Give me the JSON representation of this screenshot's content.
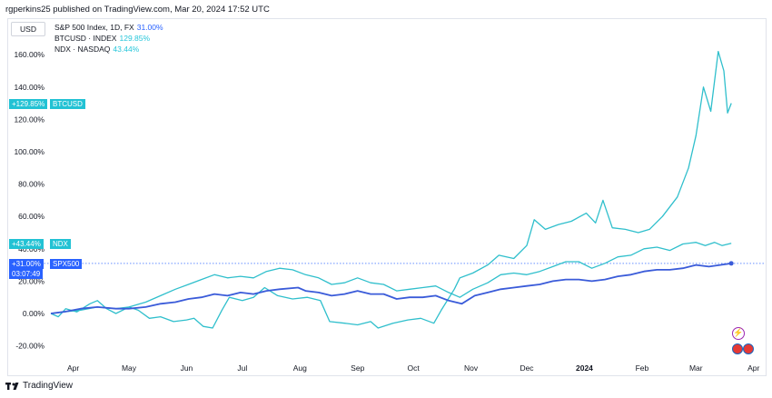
{
  "header": {
    "published": "rgperkins25 published on TradingView.com, Mar 20, 2024 17:52 UTC"
  },
  "toolbar": {
    "currency": "USD"
  },
  "legend": [
    {
      "name": "S&P 500 Index, 1D, FX",
      "value": "31.00%",
      "color": "#2962ff"
    },
    {
      "name": "BTCUSD · INDEX",
      "value": "129.85%",
      "color": "#26c6da"
    },
    {
      "name": "NDX · NASDAQ",
      "value": "43.44%",
      "color": "#26c6da"
    }
  ],
  "badges": {
    "btc": {
      "value": "+129.85%",
      "label": "BTCUSD"
    },
    "ndx": {
      "value": "+43.44%",
      "label": "NDX"
    },
    "spx": {
      "value": "+31.00%",
      "label": "SPX500",
      "countdown": "03:07:49"
    }
  },
  "footer": {
    "brand": "TradingView"
  },
  "colors": {
    "spx": "#3a5bd9",
    "btc": "#2fbfcc",
    "ndx": "#2fbfcc",
    "badge_teal": "#22c2d4",
    "badge_blue": "#2962ff"
  },
  "chart_data": {
    "type": "line",
    "y_unit": "percent change",
    "ylim": [
      -25,
      170
    ],
    "yticks": [
      -20,
      0,
      20,
      40,
      60,
      80,
      100,
      120,
      140,
      160
    ],
    "ytick_labels": [
      "-20.00%",
      "0.00%",
      "20.00%",
      "40.00%",
      "60.00%",
      "80.00%",
      "100.00%",
      "120.00%",
      "140.00%",
      "160.00%"
    ],
    "xticks": [
      "Apr",
      "May",
      "Jun",
      "Jul",
      "Aug",
      "Sep",
      "Oct",
      "Nov",
      "Dec",
      "2024",
      "Feb",
      "Mar",
      "Apr"
    ],
    "x_start": "2023-03-20",
    "x_end": "2024-04-07",
    "grid": false,
    "series": [
      {
        "name": "BTCUSD · INDEX",
        "color": "#2fbfcc",
        "points": [
          [
            "2023-03-20",
            0
          ],
          [
            "2023-03-24",
            -2
          ],
          [
            "2023-03-28",
            3
          ],
          [
            "2023-04-03",
            1
          ],
          [
            "2023-04-10",
            6
          ],
          [
            "2023-04-14",
            8
          ],
          [
            "2023-04-19",
            3
          ],
          [
            "2023-04-24",
            0
          ],
          [
            "2023-05-01",
            4
          ],
          [
            "2023-05-06",
            2
          ],
          [
            "2023-05-12",
            -3
          ],
          [
            "2023-05-18",
            -2
          ],
          [
            "2023-05-25",
            -5
          ],
          [
            "2023-06-01",
            -4
          ],
          [
            "2023-06-05",
            -3
          ],
          [
            "2023-06-10",
            -8
          ],
          [
            "2023-06-15",
            -9
          ],
          [
            "2023-06-20",
            2
          ],
          [
            "2023-06-24",
            10
          ],
          [
            "2023-07-01",
            8
          ],
          [
            "2023-07-07",
            10
          ],
          [
            "2023-07-13",
            16
          ],
          [
            "2023-07-20",
            11
          ],
          [
            "2023-07-28",
            9
          ],
          [
            "2023-08-05",
            10
          ],
          [
            "2023-08-12",
            8
          ],
          [
            "2023-08-17",
            -5
          ],
          [
            "2023-08-25",
            -6
          ],
          [
            "2023-09-01",
            -7
          ],
          [
            "2023-09-08",
            -5
          ],
          [
            "2023-09-12",
            -9
          ],
          [
            "2023-09-20",
            -6
          ],
          [
            "2023-09-28",
            -4
          ],
          [
            "2023-10-05",
            -3
          ],
          [
            "2023-10-12",
            -6
          ],
          [
            "2023-10-16",
            2
          ],
          [
            "2023-10-23",
            15
          ],
          [
            "2023-10-26",
            22
          ],
          [
            "2023-11-02",
            25
          ],
          [
            "2023-11-10",
            30
          ],
          [
            "2023-11-16",
            36
          ],
          [
            "2023-11-24",
            34
          ],
          [
            "2023-12-01",
            42
          ],
          [
            "2023-12-05",
            58
          ],
          [
            "2023-12-11",
            52
          ],
          [
            "2023-12-18",
            55
          ],
          [
            "2023-12-25",
            57
          ],
          [
            "2024-01-02",
            62
          ],
          [
            "2024-01-07",
            56
          ],
          [
            "2024-01-11",
            70
          ],
          [
            "2024-01-16",
            53
          ],
          [
            "2024-01-23",
            52
          ],
          [
            "2024-01-30",
            50
          ],
          [
            "2024-02-05",
            52
          ],
          [
            "2024-02-12",
            60
          ],
          [
            "2024-02-20",
            72
          ],
          [
            "2024-02-26",
            90
          ],
          [
            "2024-03-01",
            110
          ],
          [
            "2024-03-05",
            140
          ],
          [
            "2024-03-09",
            125
          ],
          [
            "2024-03-13",
            162
          ],
          [
            "2024-03-16",
            150
          ],
          [
            "2024-03-18",
            124
          ],
          [
            "2024-03-20",
            130
          ]
        ]
      },
      {
        "name": "NDX · NASDAQ",
        "color": "#2fbfcc",
        "points": [
          [
            "2023-03-20",
            0
          ],
          [
            "2023-03-27",
            1
          ],
          [
            "2023-04-05",
            2
          ],
          [
            "2023-04-14",
            4
          ],
          [
            "2023-04-24",
            3
          ],
          [
            "2023-05-01",
            4
          ],
          [
            "2023-05-10",
            7
          ],
          [
            "2023-05-18",
            11
          ],
          [
            "2023-05-26",
            15
          ],
          [
            "2023-06-02",
            18
          ],
          [
            "2023-06-09",
            21
          ],
          [
            "2023-06-16",
            24
          ],
          [
            "2023-06-23",
            22
          ],
          [
            "2023-06-30",
            23
          ],
          [
            "2023-07-07",
            22
          ],
          [
            "2023-07-14",
            26
          ],
          [
            "2023-07-21",
            28
          ],
          [
            "2023-07-28",
            27
          ],
          [
            "2023-08-04",
            24
          ],
          [
            "2023-08-11",
            22
          ],
          [
            "2023-08-18",
            18
          ],
          [
            "2023-08-25",
            19
          ],
          [
            "2023-09-01",
            22
          ],
          [
            "2023-09-08",
            19
          ],
          [
            "2023-09-15",
            18
          ],
          [
            "2023-09-22",
            14
          ],
          [
            "2023-09-29",
            15
          ],
          [
            "2023-10-06",
            16
          ],
          [
            "2023-10-13",
            17
          ],
          [
            "2023-10-20",
            13
          ],
          [
            "2023-10-26",
            10
          ],
          [
            "2023-11-02",
            15
          ],
          [
            "2023-11-10",
            19
          ],
          [
            "2023-11-17",
            24
          ],
          [
            "2023-11-24",
            25
          ],
          [
            "2023-12-01",
            24
          ],
          [
            "2023-12-08",
            26
          ],
          [
            "2023-12-15",
            29
          ],
          [
            "2023-12-22",
            32
          ],
          [
            "2023-12-29",
            32
          ],
          [
            "2024-01-05",
            28
          ],
          [
            "2024-01-12",
            31
          ],
          [
            "2024-01-19",
            35
          ],
          [
            "2024-01-26",
            36
          ],
          [
            "2024-02-02",
            40
          ],
          [
            "2024-02-09",
            41
          ],
          [
            "2024-02-16",
            39
          ],
          [
            "2024-02-23",
            43
          ],
          [
            "2024-03-01",
            44
          ],
          [
            "2024-03-06",
            42
          ],
          [
            "2024-03-11",
            44
          ],
          [
            "2024-03-15",
            42
          ],
          [
            "2024-03-20",
            43.44
          ]
        ]
      },
      {
        "name": "S&P 500 Index, 1D, FX",
        "color": "#3a5bd9",
        "points": [
          [
            "2023-03-20",
            0
          ],
          [
            "2023-03-27",
            1
          ],
          [
            "2023-04-05",
            3
          ],
          [
            "2023-04-14",
            4
          ],
          [
            "2023-04-24",
            3
          ],
          [
            "2023-05-01",
            3
          ],
          [
            "2023-05-10",
            4
          ],
          [
            "2023-05-18",
            6
          ],
          [
            "2023-05-26",
            7
          ],
          [
            "2023-06-02",
            9
          ],
          [
            "2023-06-09",
            10
          ],
          [
            "2023-06-16",
            12
          ],
          [
            "2023-06-23",
            11
          ],
          [
            "2023-06-30",
            13
          ],
          [
            "2023-07-07",
            12
          ],
          [
            "2023-07-14",
            14
          ],
          [
            "2023-07-21",
            15
          ],
          [
            "2023-07-31",
            16
          ],
          [
            "2023-08-04",
            14
          ],
          [
            "2023-08-11",
            13
          ],
          [
            "2023-08-18",
            11
          ],
          [
            "2023-08-25",
            12
          ],
          [
            "2023-09-01",
            14
          ],
          [
            "2023-09-08",
            12
          ],
          [
            "2023-09-15",
            12
          ],
          [
            "2023-09-22",
            9
          ],
          [
            "2023-09-29",
            10
          ],
          [
            "2023-10-06",
            10
          ],
          [
            "2023-10-13",
            11
          ],
          [
            "2023-10-20",
            8
          ],
          [
            "2023-10-27",
            6
          ],
          [
            "2023-11-03",
            11
          ],
          [
            "2023-11-10",
            13
          ],
          [
            "2023-11-17",
            15
          ],
          [
            "2023-11-24",
            16
          ],
          [
            "2023-12-01",
            17
          ],
          [
            "2023-12-08",
            18
          ],
          [
            "2023-12-15",
            20
          ],
          [
            "2023-12-22",
            21
          ],
          [
            "2023-12-29",
            21
          ],
          [
            "2024-01-05",
            20
          ],
          [
            "2024-01-12",
            21
          ],
          [
            "2024-01-19",
            23
          ],
          [
            "2024-01-26",
            24
          ],
          [
            "2024-02-02",
            26
          ],
          [
            "2024-02-09",
            27
          ],
          [
            "2024-02-16",
            27
          ],
          [
            "2024-02-23",
            28
          ],
          [
            "2024-03-01",
            30
          ],
          [
            "2024-03-08",
            29
          ],
          [
            "2024-03-14",
            30
          ],
          [
            "2024-03-20",
            31
          ]
        ]
      }
    ]
  }
}
